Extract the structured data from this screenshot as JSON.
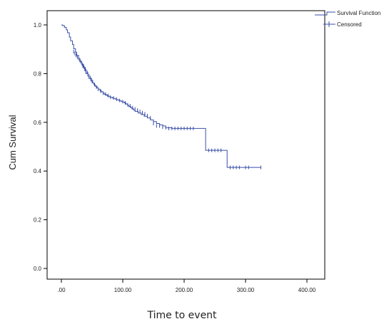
{
  "chart_data": {
    "type": "line",
    "title": "",
    "xlabel": "Time to event",
    "ylabel": "Cum Survival",
    "xlim": [
      0,
      400
    ],
    "ylim": [
      0,
      1
    ],
    "x_ticks": [
      0,
      100,
      200,
      300,
      400
    ],
    "x_tick_labels": [
      ".00",
      "100.00",
      "200.00",
      "300.00",
      "400.00"
    ],
    "y_ticks": [
      0,
      0.2,
      0.4,
      0.6,
      0.8,
      1.0
    ],
    "y_tick_labels": [
      "0.0",
      "0.2",
      "0.4",
      "0.6",
      "0.8",
      "1.0"
    ],
    "grid": false,
    "legend_position": "top-right",
    "colors": {
      "series": "#3a4fa8"
    },
    "series": [
      {
        "name": "Survival Function",
        "x": [
          0,
          2,
          5,
          8,
          10,
          13,
          15,
          18,
          20,
          23,
          25,
          28,
          30,
          33,
          35,
          38,
          40,
          43,
          45,
          48,
          50,
          53,
          55,
          58,
          60,
          63,
          65,
          68,
          70,
          73,
          75,
          78,
          80,
          83,
          85,
          88,
          90,
          93,
          95,
          98,
          100,
          103,
          105,
          108,
          110,
          113,
          115,
          118,
          120,
          125,
          130,
          135,
          140,
          145,
          150,
          155,
          160,
          165,
          170,
          180,
          190,
          200,
          210,
          220,
          230,
          235,
          245,
          255,
          260,
          265,
          270,
          280,
          290,
          300,
          310,
          325
        ],
        "y": [
          1.0,
          0.997,
          0.99,
          0.98,
          0.968,
          0.95,
          0.935,
          0.92,
          0.902,
          0.888,
          0.875,
          0.862,
          0.85,
          0.838,
          0.825,
          0.812,
          0.8,
          0.79,
          0.78,
          0.77,
          0.762,
          0.755,
          0.748,
          0.742,
          0.736,
          0.73,
          0.725,
          0.72,
          0.715,
          0.712,
          0.708,
          0.705,
          0.703,
          0.7,
          0.698,
          0.695,
          0.693,
          0.69,
          0.688,
          0.685,
          0.683,
          0.68,
          0.675,
          0.67,
          0.665,
          0.66,
          0.655,
          0.65,
          0.645,
          0.638,
          0.632,
          0.625,
          0.618,
          0.61,
          0.603,
          0.595,
          0.59,
          0.585,
          0.578,
          0.575,
          0.575,
          0.575,
          0.575,
          0.575,
          0.575,
          0.485,
          0.485,
          0.485,
          0.485,
          0.485,
          0.415,
          0.415,
          0.415,
          0.415,
          0.415,
          0.415
        ]
      }
    ],
    "censored": {
      "name": "Censored",
      "x": [
        20,
        22,
        24,
        26,
        28,
        30,
        31,
        33,
        34,
        36,
        37,
        39,
        40,
        42,
        43,
        45,
        47,
        49,
        51,
        54,
        57,
        60,
        64,
        68,
        72,
        76,
        80,
        85,
        90,
        95,
        100,
        104,
        108,
        112,
        116,
        120,
        124,
        128,
        132,
        136,
        140,
        145,
        150,
        155,
        160,
        165,
        170,
        175,
        180,
        185,
        190,
        195,
        200,
        205,
        210,
        215,
        240,
        245,
        250,
        255,
        260,
        275,
        280,
        285,
        290,
        300,
        305,
        325
      ],
      "y": [
        0.89,
        0.882,
        0.875,
        0.868,
        0.862,
        0.856,
        0.85,
        0.845,
        0.838,
        0.833,
        0.826,
        0.82,
        0.812,
        0.806,
        0.8,
        0.792,
        0.784,
        0.776,
        0.768,
        0.755,
        0.745,
        0.736,
        0.728,
        0.72,
        0.716,
        0.71,
        0.703,
        0.7,
        0.695,
        0.69,
        0.685,
        0.68,
        0.672,
        0.668,
        0.66,
        0.655,
        0.65,
        0.645,
        0.64,
        0.635,
        0.628,
        0.618,
        0.595,
        0.585,
        0.585,
        0.58,
        0.578,
        0.575,
        0.575,
        0.575,
        0.575,
        0.575,
        0.575,
        0.575,
        0.575,
        0.575,
        0.485,
        0.485,
        0.485,
        0.485,
        0.485,
        0.415,
        0.415,
        0.415,
        0.415,
        0.415,
        0.415,
        0.415
      ]
    }
  }
}
